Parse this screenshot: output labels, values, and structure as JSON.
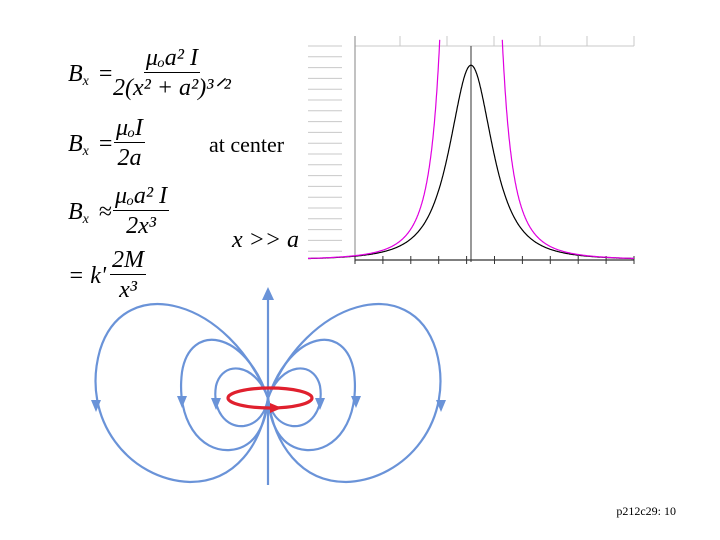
{
  "equations": {
    "general": {
      "lhs": "B",
      "lhs_sub": "x",
      "rel": "=",
      "num": "μₒa² I",
      "den": "2(x² + a²)³ᐟ²"
    },
    "center": {
      "lhs": "B",
      "lhs_sub": "x",
      "rel": "=",
      "num": "μₒI",
      "den": "2a",
      "note": "at center"
    },
    "far": {
      "lhs": "B",
      "lhs_sub": "x",
      "rel": "≈",
      "num": "μₒa² I",
      "den": "2x³",
      "note": "x >> a"
    },
    "dipole": {
      "lhs": "= k'",
      "num": "2M",
      "den": "x³"
    }
  },
  "footer": {
    "slide_id": "p212c29: 10"
  },
  "chart_data": {
    "type": "line",
    "title": "",
    "xlabel": "",
    "ylabel": "",
    "xlim": [
      -5,
      5
    ],
    "ylim": [
      0,
      1.15
    ],
    "grid": true,
    "series": [
      {
        "color": "#000000",
        "formula": "1/(1+x^2)^(3/2)"
      },
      {
        "color": "#e000e0",
        "formula": "1/|x|^3"
      }
    ]
  },
  "field_lines": {
    "colors": {
      "field": "#6a93d8",
      "loop": "#e0202e"
    }
  }
}
